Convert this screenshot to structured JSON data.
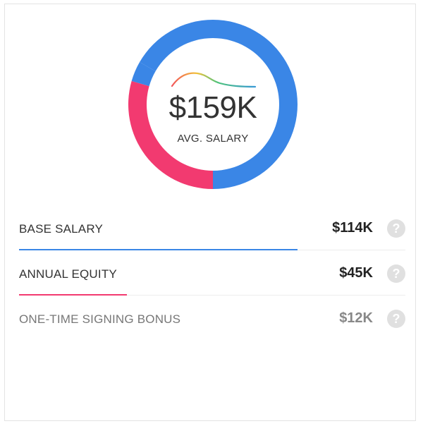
{
  "summary": {
    "amount": "$159K",
    "label": "AVG. SALARY"
  },
  "colors": {
    "base": "#3a86e6",
    "equity": "#f23a70",
    "bonus": "#e6e6e6"
  },
  "breakdown": [
    {
      "label": "BASE SALARY",
      "value": "$114K",
      "fill": 0.72,
      "color": "#3a86e6"
    },
    {
      "label": "ANNUAL EQUITY",
      "value": "$45K",
      "fill": 0.28,
      "color": "#f23a70"
    },
    {
      "label": "ONE-TIME SIGNING BONUS",
      "value": "$12K",
      "fill": 0,
      "color": "#e6e6e6"
    }
  ],
  "help_icon": "question-icon"
}
